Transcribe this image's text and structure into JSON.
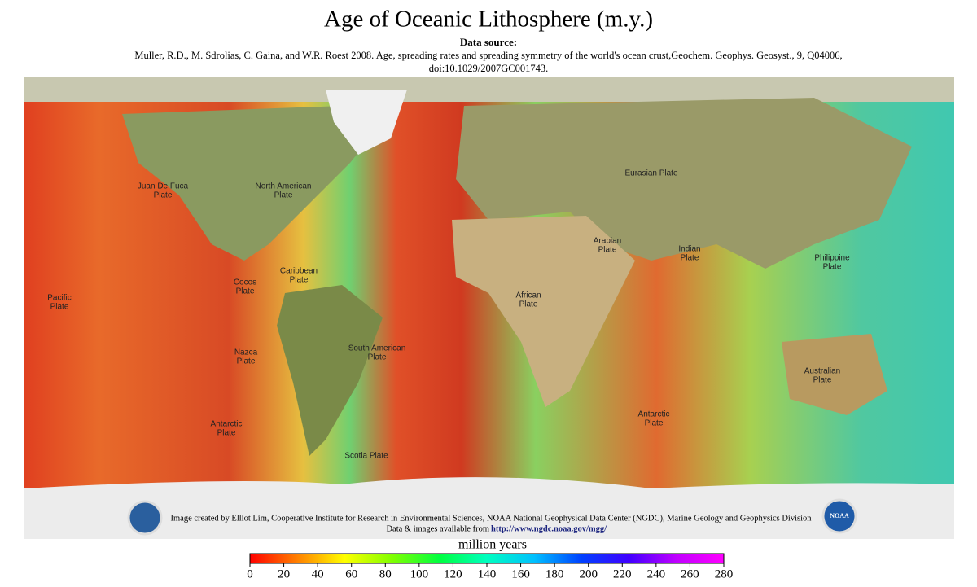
{
  "header": {
    "title": "Age of Oceanic Lithosphere (m.y.)",
    "source_label": "Data source:",
    "citation": [
      "Muller, R.D., M. Sdrolias, C. Gaina, and W.R. Roest 2008. Age, spreading rates and spreading symmetry of the world's ocean crust,Geochem. Geophys. Geosyst., 9, Q04006,",
      "doi:10.1029/2007GC001743."
    ]
  },
  "plates": [
    {
      "lines": [
        "Juan De Fuca",
        "Plate"
      ]
    },
    {
      "lines": [
        "North American",
        "Plate"
      ]
    },
    {
      "lines": [
        "Eurasian Plate"
      ]
    },
    {
      "lines": [
        "Arabian",
        "Plate"
      ]
    },
    {
      "lines": [
        "Indian",
        "Plate"
      ]
    },
    {
      "lines": [
        "Philippine",
        "Plate"
      ]
    },
    {
      "lines": [
        "Pacific",
        "Plate"
      ]
    },
    {
      "lines": [
        "Cocos",
        "Plate"
      ]
    },
    {
      "lines": [
        "Caribbean",
        "Plate"
      ]
    },
    {
      "lines": [
        "African",
        "Plate"
      ]
    },
    {
      "lines": [
        "South American",
        "Plate"
      ]
    },
    {
      "lines": [
        "Nazca",
        "Plate"
      ]
    },
    {
      "lines": [
        "Australian",
        "Plate"
      ]
    },
    {
      "lines": [
        "Antarctic",
        "Plate"
      ]
    },
    {
      "lines": [
        "Antarctic",
        "Plate"
      ]
    },
    {
      "lines": [
        "Scotia Plate"
      ]
    }
  ],
  "credits": {
    "line1": "Image created by Elliot Lim, Cooperative Institute for Research in Environmental Sciences,  NOAA National Geophysical Data Center (NGDC), Marine Geology and Geophysics Division",
    "line2_prefix": "Data & images available from",
    "link": "http://www.ngdc.noaa.gov/mgg/",
    "logo_text": "NOAA"
  },
  "colorbar": {
    "label": "million years",
    "range": [
      0,
      280
    ],
    "ticks": [
      0,
      20,
      40,
      60,
      80,
      100,
      120,
      140,
      160,
      180,
      200,
      220,
      240,
      260,
      280
    ],
    "colors": [
      "#ff0000",
      "#ff8000",
      "#ffff00",
      "#80ff00",
      "#00ff40",
      "#00ffc0",
      "#00c0ff",
      "#0040ff",
      "#4000ff",
      "#c000ff",
      "#ff00ff"
    ]
  }
}
